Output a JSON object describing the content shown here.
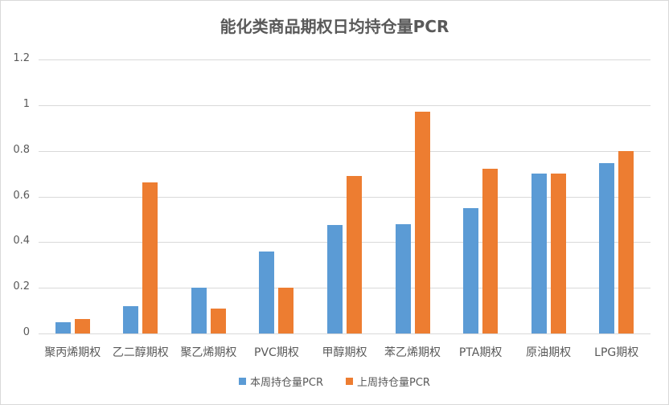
{
  "chart_data": {
    "type": "bar",
    "title": "能化类商品期权日均持仓量PCR",
    "xlabel": "",
    "ylabel": "",
    "ylim": [
      0,
      1.2
    ],
    "yticks": [
      "0",
      "0.2",
      "0.4",
      "0.6",
      "0.8",
      "1",
      "1.2"
    ],
    "grid": true,
    "legend_position": "bottom",
    "categories": [
      "聚丙烯期权",
      "乙二醇期权",
      "聚乙烯期权",
      "PVC期权",
      "甲醇期权",
      "苯乙烯期权",
      "PTA期权",
      "原油期权",
      "LPG期权"
    ],
    "series": [
      {
        "name": "本周持仓量PCR",
        "color": "#5b9bd5",
        "values": [
          0.05,
          0.12,
          0.2,
          0.36,
          0.475,
          0.48,
          0.55,
          0.7,
          0.745
        ]
      },
      {
        "name": "上周持仓量PCR",
        "color": "#ed7d31",
        "values": [
          0.065,
          0.66,
          0.11,
          0.2,
          0.69,
          0.97,
          0.72,
          0.7,
          0.8
        ]
      }
    ]
  }
}
